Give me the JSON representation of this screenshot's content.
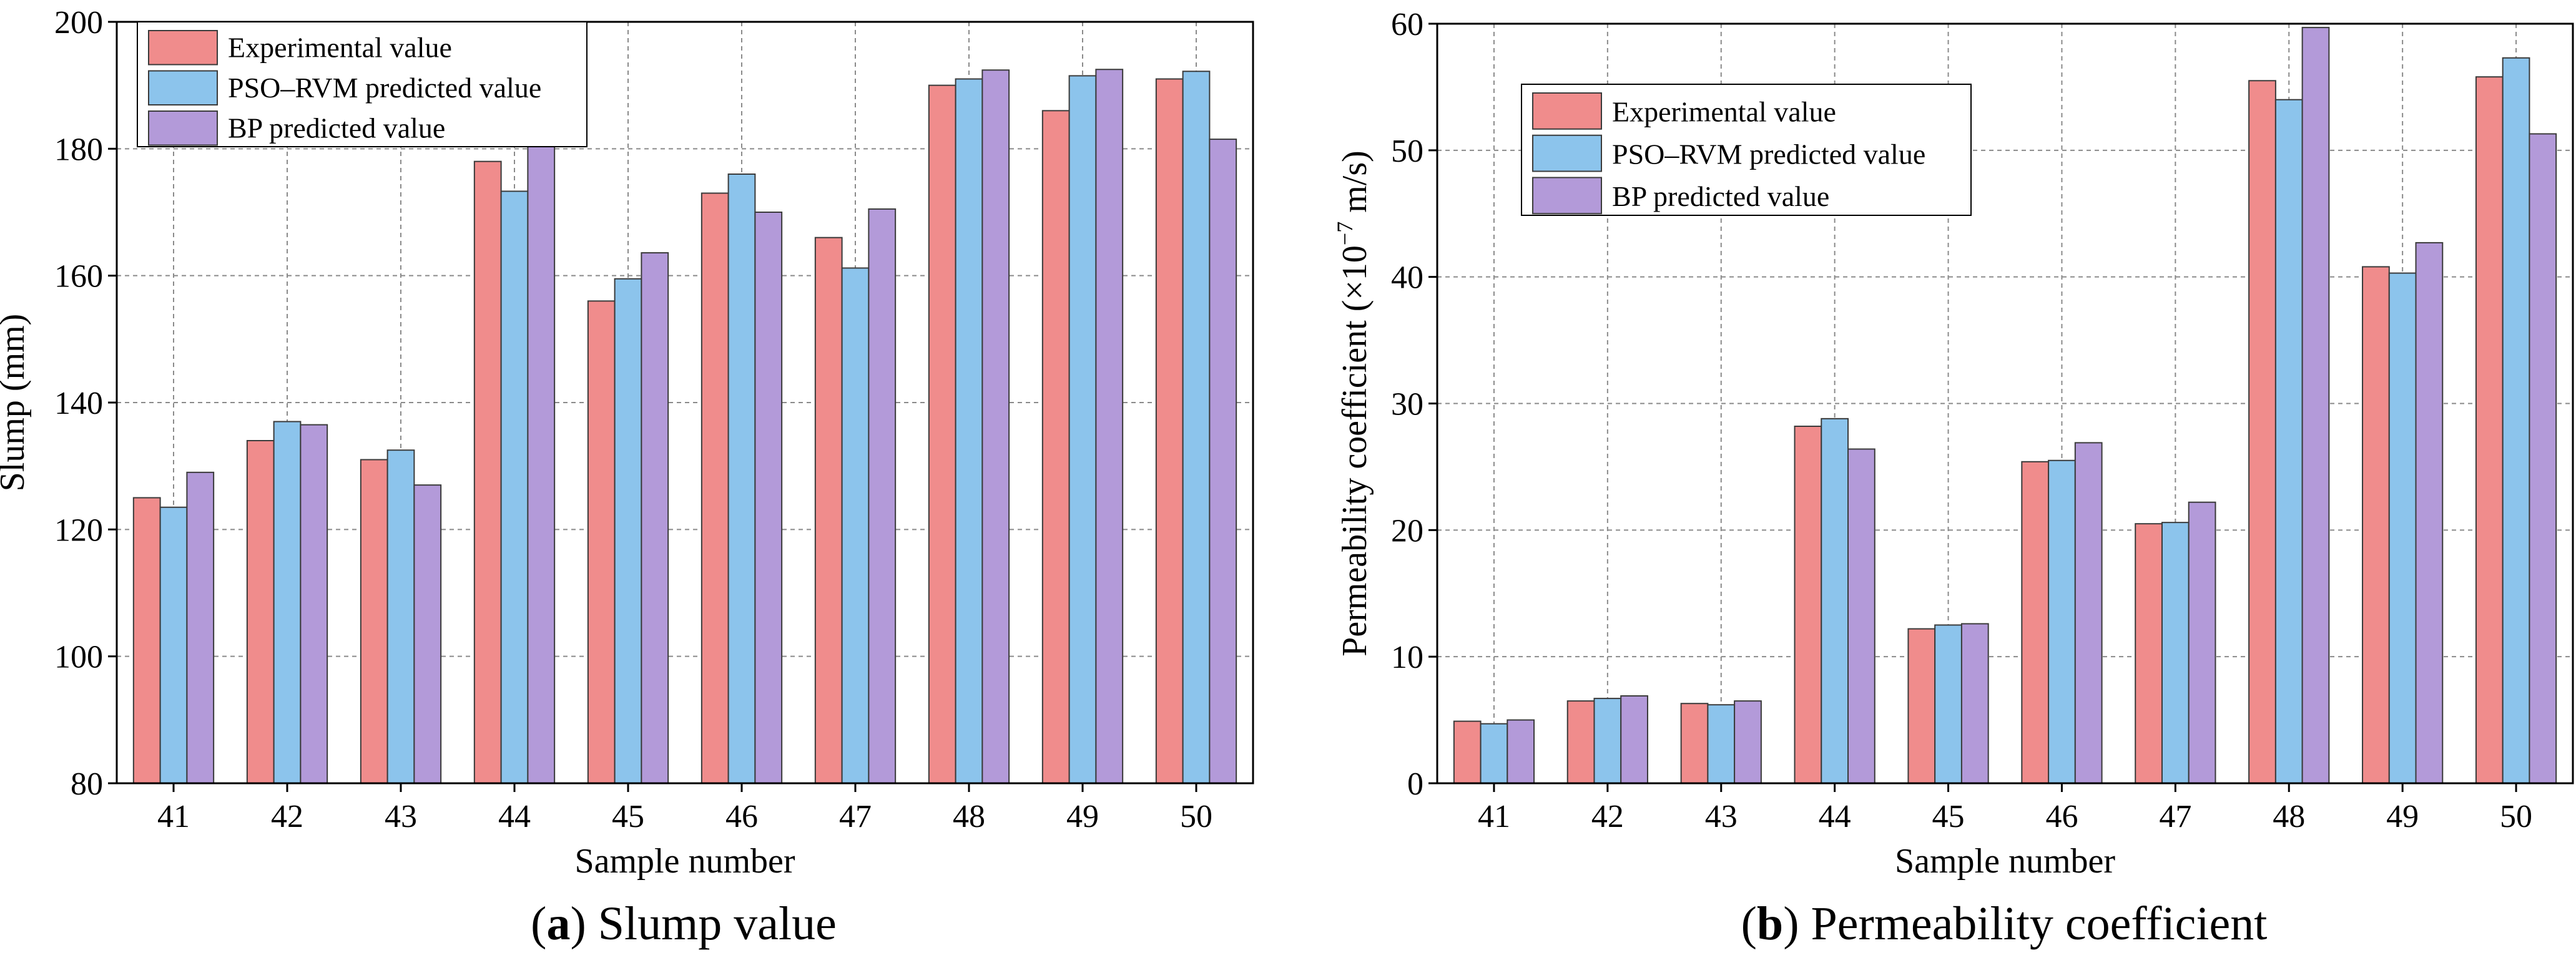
{
  "chart_data": [
    {
      "panel": "a",
      "type": "bar",
      "title": "Slump value",
      "caption_prefix": "(",
      "caption_letter": "a",
      "caption_suffix": ") Slump value",
      "xlabel": "Sample number",
      "ylabel": "Slump (mm)",
      "ylim": [
        80,
        200
      ],
      "yticks": [
        80,
        100,
        120,
        140,
        160,
        180,
        200
      ],
      "grid": true,
      "legend_position": "top-left",
      "categories": [
        "41",
        "42",
        "43",
        "44",
        "45",
        "46",
        "47",
        "48",
        "49",
        "50"
      ],
      "series": [
        {
          "name": "Experimental value",
          "color": "#F08C8C",
          "values": [
            125,
            134,
            131,
            178,
            156,
            173,
            166,
            190,
            186,
            191
          ]
        },
        {
          "name": "PSO–RVM predicted value",
          "color": "#8CC4EC",
          "values": [
            123.5,
            137,
            132.5,
            173.3,
            159.5,
            176,
            161.2,
            191,
            191.5,
            192.2
          ]
        },
        {
          "name": "BP predicted value",
          "color": "#B39AD9",
          "values": [
            129,
            136.5,
            127,
            180.5,
            163.6,
            170,
            170.5,
            192.4,
            192.5,
            181.5
          ]
        }
      ]
    },
    {
      "panel": "b",
      "type": "bar",
      "title": "Permeability coefficient",
      "caption_prefix": "(",
      "caption_letter": "b",
      "caption_suffix": ") Permeability coefficient",
      "xlabel": "Sample number",
      "ylabel": "Permeability coefficient (×10",
      "ylabel_sup": "−7",
      "ylabel_tail": " m/s)",
      "ylim": [
        0,
        60
      ],
      "yticks": [
        0,
        10,
        20,
        30,
        40,
        50,
        60
      ],
      "grid": true,
      "legend_position": "top-left",
      "categories": [
        "41",
        "42",
        "43",
        "44",
        "45",
        "46",
        "47",
        "48",
        "49",
        "50"
      ],
      "series": [
        {
          "name": "Experimental value",
          "color": "#F08C8C",
          "values": [
            4.9,
            6.5,
            6.3,
            28.2,
            12.2,
            25.4,
            20.5,
            55.5,
            40.8,
            55.8
          ]
        },
        {
          "name": "PSO–RVM predicted value",
          "color": "#8CC4EC",
          "values": [
            4.7,
            6.7,
            6.2,
            28.8,
            12.5,
            25.5,
            20.6,
            54.0,
            40.3,
            57.3
          ]
        },
        {
          "name": "BP predicted value",
          "color": "#B39AD9",
          "values": [
            5.0,
            6.9,
            6.5,
            26.4,
            12.6,
            26.9,
            22.2,
            59.7,
            42.7,
            51.3
          ]
        }
      ]
    }
  ]
}
